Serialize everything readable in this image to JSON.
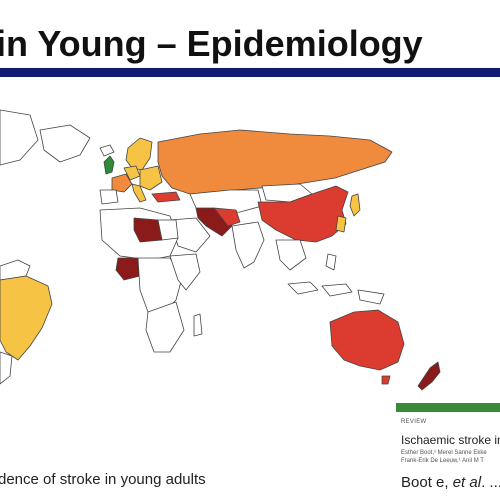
{
  "slide": {
    "title": "in Young – Epidemiology",
    "caption": "dence of stroke in young adults"
  },
  "reference": {
    "kicker": "REVIEW",
    "title": "Ischaemic stroke in",
    "authors_line1": "Esther Boot,¹ Merel Sanne Ekke",
    "authors_line2": "Frank-Erik De Leeuw,¹ Anil M T",
    "cite_author": "Boot e,",
    "cite_etal": "et al",
    "cite_tail": ". ..."
  },
  "map": {
    "colors": {
      "lowest": "#2e8b3a",
      "low": "#f6c344",
      "medium": "#f08a3c",
      "high": "#dc3b2f",
      "highest": "#8b1a1a",
      "no_data": "#ffffff",
      "border": "#444444"
    }
  }
}
